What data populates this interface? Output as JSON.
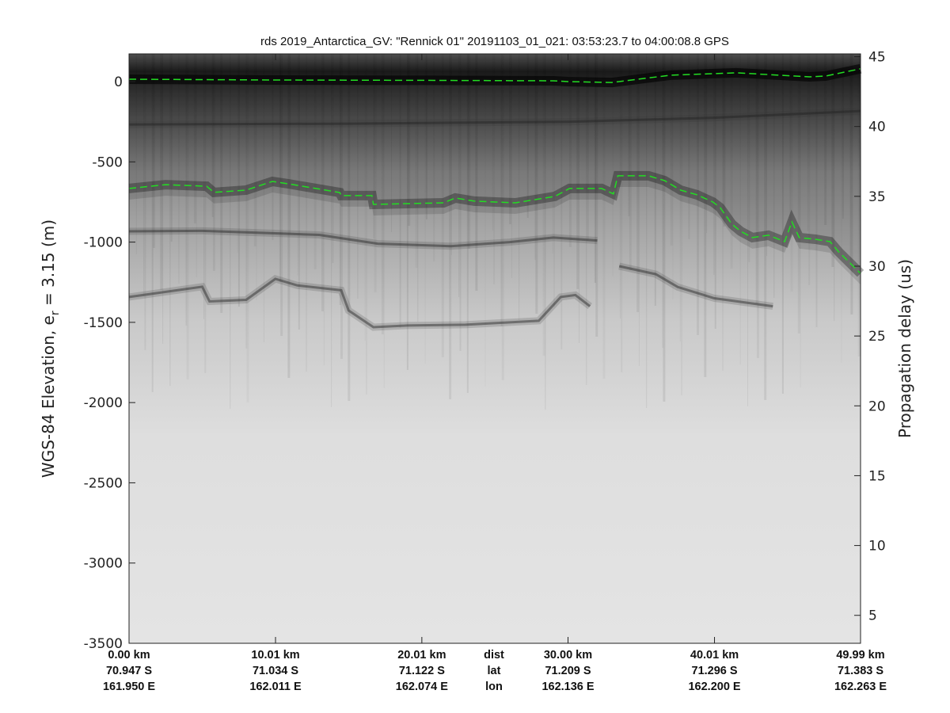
{
  "chart_data": {
    "type": "line",
    "title": "rds 2019_Antarctica_GV: \"Rennick 01\"  20191103_01_021: 03:53:23.7 to 04:00:08.8 GPS",
    "ylabel": "WGS-84 Elevation, e",
    "ylabel_sub": "r",
    "ylabel_tail": " = 3.15 (m)",
    "y2label": "Propagation delay (us)",
    "xlim": [
      0,
      49.99
    ],
    "ylim": [
      -3500,
      173
    ],
    "y2lim": [
      3,
      45.2
    ],
    "yticks": [
      0,
      -500,
      -1000,
      -1500,
      -2000,
      -2500,
      -3000,
      -3500
    ],
    "y2ticks": [
      5,
      10,
      15,
      20,
      25,
      30,
      35,
      40,
      45
    ],
    "grid": false,
    "background": "radar echogram (grayscale)",
    "pick_color": "#22dd22",
    "x_label_rows": {
      "row_names": [
        "dist",
        "lat",
        "lon"
      ],
      "positions_km": [
        0,
        10.01,
        20.01,
        30.0,
        40.01,
        49.99
      ],
      "dist": [
        "0.00 km",
        "10.01 km",
        "20.01 km",
        "30.00 km",
        "40.01 km",
        "49.99 km"
      ],
      "lat": [
        "70.947 S",
        "71.034 S",
        "71.122 S",
        "71.209 S",
        "71.296 S",
        "71.383 S"
      ],
      "lon": [
        "161.950 E",
        "162.011 E",
        "162.074 E",
        "162.136 E",
        "162.200 E",
        "162.263 E"
      ]
    },
    "series": [
      {
        "role": "surface pick",
        "x": [
          0,
          10,
          20,
          29,
          30,
          33,
          37,
          41.5,
          46.5,
          47.6,
          49.99
        ],
        "y": [
          15,
          10,
          8,
          5,
          0,
          -5,
          40,
          55,
          30,
          35,
          80
        ]
      },
      {
        "role": "bed pick",
        "x": [
          0,
          2.5,
          5.3,
          5.8,
          8.0,
          9.8,
          10.9,
          14.4,
          14.5,
          16.6,
          16.7,
          21.5,
          22.3,
          23.6,
          26.4,
          29.1,
          30.1,
          32.3,
          33.1,
          33.4,
          35.5,
          36.6,
          37.7,
          38.8,
          39.9,
          40.4,
          41.2,
          41.8,
          42.6,
          43.7,
          44.8,
          45.3,
          45.8,
          46.9,
          47.9,
          48.5,
          49.99
        ],
        "y": [
          -666,
          -642,
          -652,
          -690,
          -676,
          -622,
          -637,
          -691,
          -710,
          -710,
          -765,
          -755,
          -725,
          -745,
          -755,
          -715,
          -666,
          -666,
          -700,
          -587,
          -587,
          -617,
          -676,
          -705,
          -750,
          -785,
          -888,
          -933,
          -972,
          -957,
          -997,
          -874,
          -972,
          -982,
          -997,
          -1061,
          -1195
        ]
      }
    ],
    "layers": [
      {
        "x": [
          0,
          15,
          30,
          40,
          49.99
        ],
        "y": [
          -267,
          -262,
          -250,
          -225,
          -183
        ]
      },
      {
        "x": [
          0,
          5,
          10,
          13,
          17,
          22,
          26,
          29,
          32
        ],
        "y": [
          -933,
          -930,
          -945,
          -955,
          -1010,
          -1025,
          -1000,
          -972,
          -990
        ]
      },
      {
        "x": [
          0,
          5,
          5.5,
          8,
          10,
          11.5,
          14.5,
          15,
          16.7,
          19,
          23,
          28,
          29.5,
          30.5,
          31.5
        ],
        "y": [
          -1342,
          -1278,
          -1370,
          -1360,
          -1229,
          -1270,
          -1300,
          -1426,
          -1530,
          -1520,
          -1515,
          -1490,
          -1342,
          -1330,
          -1400
        ]
      },
      {
        "x": [
          33.5,
          36,
          37.5,
          40,
          44
        ],
        "y": [
          -1150,
          -1200,
          -1280,
          -1350,
          -1400
        ]
      }
    ]
  }
}
